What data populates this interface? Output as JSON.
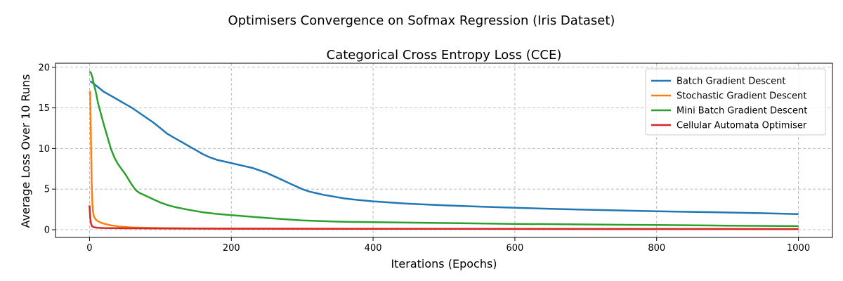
{
  "figure": {
    "suptitle": "Optimisers Convergence on Sofmax Regression (Iris Dataset)"
  },
  "chart_data": {
    "type": "line",
    "title": "Categorical Cross Entropy Loss (CCE)",
    "xlabel": "Iterations (Epochs)",
    "ylabel": "Average Loss Over 10 Runs",
    "xlim": [
      -48,
      1048
    ],
    "ylim": [
      -0.95,
      20.5
    ],
    "xticks": [
      0,
      200,
      400,
      600,
      800,
      1000
    ],
    "yticks": [
      0,
      5,
      10,
      15,
      20
    ],
    "grid": true,
    "legend_position": "top-right",
    "series": [
      {
        "name": "Batch Gradient Descent",
        "color": "#1f77b4",
        "x": [
          1,
          10,
          20,
          30,
          40,
          50,
          60,
          70,
          80,
          90,
          100,
          110,
          120,
          130,
          140,
          150,
          160,
          170,
          180,
          190,
          200,
          210,
          220,
          230,
          240,
          250,
          260,
          270,
          280,
          290,
          300,
          310,
          320,
          330,
          340,
          350,
          360,
          380,
          400,
          450,
          500,
          550,
          600,
          650,
          700,
          750,
          800,
          850,
          900,
          950,
          1000
        ],
        "y": [
          18.3,
          17.7,
          17.0,
          16.5,
          16.0,
          15.5,
          15.0,
          14.4,
          13.8,
          13.2,
          12.5,
          11.8,
          11.3,
          10.8,
          10.3,
          9.8,
          9.3,
          8.9,
          8.6,
          8.4,
          8.2,
          8.0,
          7.8,
          7.6,
          7.3,
          7.0,
          6.6,
          6.2,
          5.8,
          5.4,
          5.0,
          4.7,
          4.5,
          4.3,
          4.15,
          4.0,
          3.85,
          3.65,
          3.5,
          3.2,
          3.0,
          2.85,
          2.7,
          2.58,
          2.47,
          2.37,
          2.28,
          2.2,
          2.12,
          2.03,
          1.93
        ]
      },
      {
        "name": "Stochastic Gradient Descent",
        "color": "#ff7f0e",
        "x": [
          0,
          1,
          2,
          3,
          4,
          5,
          6,
          8,
          10,
          15,
          20,
          30,
          40,
          50,
          60,
          80,
          100,
          150,
          200,
          300,
          400,
          600,
          800,
          1000
        ],
        "y": [
          16.8,
          17.0,
          11.0,
          6.0,
          3.2,
          2.2,
          1.7,
          1.35,
          1.15,
          0.9,
          0.75,
          0.55,
          0.42,
          0.34,
          0.29,
          0.24,
          0.21,
          0.17,
          0.15,
          0.13,
          0.12,
          0.1,
          0.09,
          0.08
        ]
      },
      {
        "name": "Mini Batch Gradient Descent",
        "color": "#2ca02c",
        "x": [
          0,
          2,
          4,
          6,
          8,
          10,
          12,
          15,
          20,
          25,
          30,
          35,
          40,
          45,
          50,
          55,
          60,
          65,
          70,
          80,
          90,
          100,
          110,
          120,
          140,
          160,
          180,
          200,
          250,
          300,
          350,
          400,
          500,
          600,
          700,
          800,
          900,
          1000
        ],
        "y": [
          19.5,
          19.3,
          18.8,
          18.0,
          17.3,
          16.5,
          15.6,
          14.6,
          13.0,
          11.5,
          10.0,
          8.9,
          8.1,
          7.5,
          6.9,
          6.2,
          5.5,
          4.9,
          4.55,
          4.15,
          3.75,
          3.35,
          3.05,
          2.8,
          2.45,
          2.15,
          1.95,
          1.8,
          1.45,
          1.15,
          1.0,
          0.93,
          0.82,
          0.72,
          0.65,
          0.58,
          0.5,
          0.44
        ]
      },
      {
        "name": "Cellular Automata Optimiser",
        "color": "#d62728",
        "x": [
          0,
          1,
          2,
          3,
          4,
          6,
          8,
          12,
          20,
          40,
          100,
          200,
          1000
        ],
        "y": [
          3.0,
          1.5,
          0.8,
          0.5,
          0.4,
          0.32,
          0.28,
          0.24,
          0.21,
          0.18,
          0.15,
          0.12,
          0.08
        ]
      }
    ]
  }
}
